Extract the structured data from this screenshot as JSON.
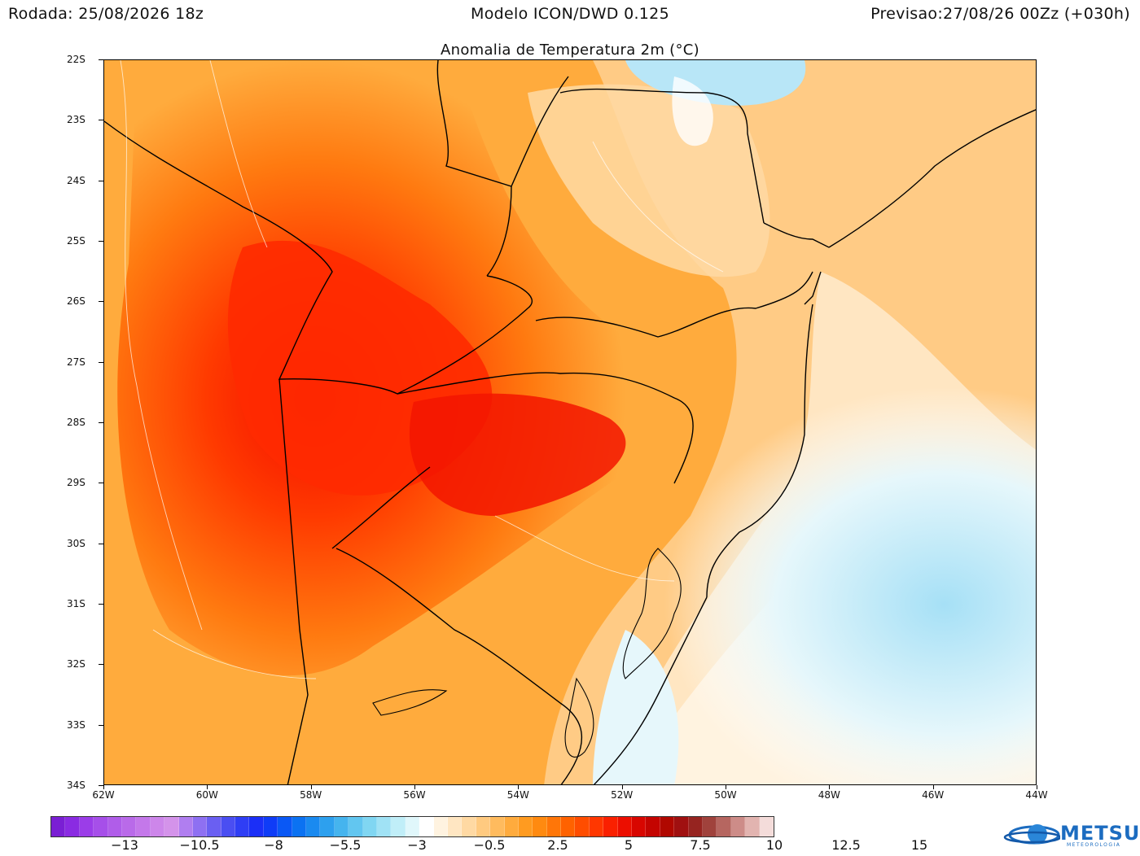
{
  "header": {
    "run": "Rodada: 25/08/2026 18z",
    "model": "Modelo ICON/DWD 0.125",
    "forecast": "Previsao:27/08/26 00Zz (+030h)"
  },
  "title": "Anomalia de Temperatura 2m (°C)",
  "map": {
    "lat_labels": [
      "22S",
      "23S",
      "24S",
      "25S",
      "26S",
      "27S",
      "28S",
      "29S",
      "30S",
      "31S",
      "32S",
      "33S",
      "34S"
    ],
    "lon_labels": [
      "62W",
      "60W",
      "58W",
      "56W",
      "54W",
      "52W",
      "50W",
      "48W",
      "46W",
      "44W"
    ]
  },
  "colorbar": {
    "labels": [
      "−13",
      "−10.5",
      "−8",
      "−5.5",
      "−3",
      "−0.5",
      "2.5",
      "5",
      "7.5",
      "10",
      "12.5",
      "15"
    ],
    "colors": [
      "#7a1fd4",
      "#8a2be2",
      "#9b3de8",
      "#a64fe9",
      "#b05de9",
      "#b96ae9",
      "#c478ea",
      "#cd86ea",
      "#d493ea",
      "#b07ef0",
      "#8e70f2",
      "#6a5ff2",
      "#4a4ef2",
      "#2f3ef5",
      "#1b2ff7",
      "#0f3cf7",
      "#0a58f5",
      "#0b72f2",
      "#1a8af0",
      "#2da0ee",
      "#45b4ee",
      "#62c6f0",
      "#80d6f2",
      "#a0e2f5",
      "#c0eef8",
      "#e0f7fb",
      "#ffffff",
      "#fff3e0",
      "#ffe6c2",
      "#ffd9a3",
      "#ffca80",
      "#ffbb5e",
      "#ffab3d",
      "#ff9b20",
      "#ff8a10",
      "#ff7608",
      "#ff6200",
      "#ff4d00",
      "#ff3700",
      "#fa2000",
      "#ec0e00",
      "#d80600",
      "#c40400",
      "#b00800",
      "#a01010",
      "#962420",
      "#a0423c",
      "#b66660",
      "#cd8c88",
      "#e2b4b0",
      "#f4dcda"
    ]
  },
  "logo": {
    "name": "METSUL",
    "sub": "METEOROLOGIA"
  }
}
